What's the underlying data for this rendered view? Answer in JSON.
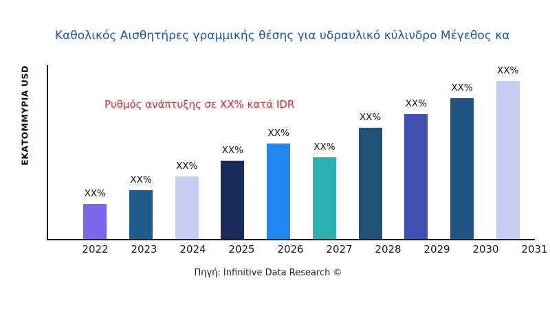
{
  "header": {
    "title": "Καθολικός Αισθητήρες γραμμικής θέσης για υδραυλικό κύλινδρο Μέγεθος κα"
  },
  "axis": {
    "y_label": "ΕΚΑΤΟΜΜΥΡΙΑ USD"
  },
  "annotation": {
    "text": "Ρυθμός ανάπτυξης σε XX% κατά IDR"
  },
  "footer": {
    "source": "Πηγή: Infinitive Data Research ©"
  },
  "colors": {
    "title": "#2155a4",
    "annotation": "#e4262c",
    "axis": "#1a1a1a"
  },
  "chart_data": {
    "type": "bar",
    "title": "Καθολικός Αισθητήρες γραμμικής θέσης για υδραυλικό κύλινδρο Μέγεθος κα",
    "xlabel": "",
    "ylabel": "ΕΚΑΤΟΜΜΥΡΙΑ USD",
    "grid": false,
    "legend": "none",
    "categories": [
      "2022",
      "2023",
      "2024",
      "2025",
      "2026",
      "2027",
      "2028",
      "2029",
      "2030",
      "2031"
    ],
    "bar_labels": [
      "XX%",
      "XX%",
      "XX%",
      "XX%",
      "XX%",
      "XX%",
      "XX%",
      "XX%",
      "XX%",
      "XX%"
    ],
    "values_relative_pct": [
      20,
      28,
      36,
      45,
      55,
      47,
      64,
      72,
      81,
      91
    ],
    "bar_colors": [
      "#7b68ee",
      "#1f5c8b",
      "#c7cdf0",
      "#182b5c",
      "#2188ef",
      "#2cb1b1",
      "#205177",
      "#4250b4",
      "#1e5384",
      "#c7cdf0"
    ],
    "value_note": "Bar data values are redacted as XX% placeholders in the source image; values_relative_pct are visually estimated bar heights as percent of plot height",
    "annotation": "Ρυθμός ανάπτυξης σε XX% κατά IDR",
    "source": "Πηγή: Infinitive Data Research ©"
  }
}
